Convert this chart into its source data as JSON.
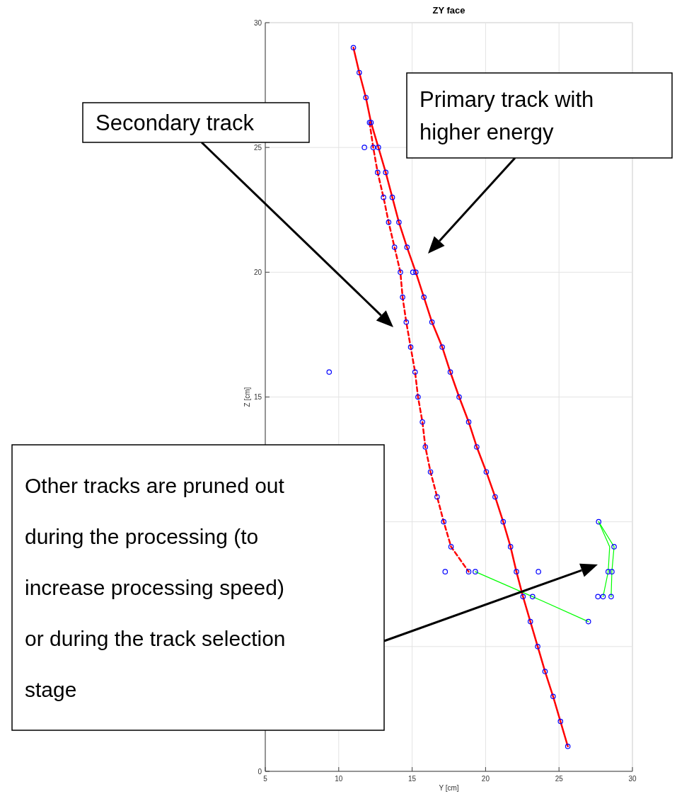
{
  "chart_data": {
    "type": "scatter",
    "title": "ZY face",
    "xlabel": "Y [cm]",
    "ylabel": "Z [cm]",
    "xlim": [
      5,
      30
    ],
    "ylim": [
      0,
      30
    ],
    "xticks": [
      5,
      10,
      15,
      20,
      25,
      30
    ],
    "yticks": [
      0,
      {
        "value": 5,
        "label": null
      },
      {
        "value": 10,
        "label": null
      },
      15,
      20,
      25,
      30
    ],
    "grid": true,
    "series": [
      {
        "type": "line",
        "color": "#ff0000",
        "line_style": "solid",
        "x": [
          11.0,
          11.4,
          11.85,
          12.2,
          12.7,
          13.2,
          13.65,
          14.1,
          14.65,
          15.25,
          15.8,
          16.35,
          17.05,
          17.6,
          18.2,
          18.85,
          19.4,
          20.05,
          20.65,
          21.2,
          21.7,
          22.1,
          22.55,
          23.05,
          23.55,
          24.05,
          24.6,
          25.1,
          25.6
        ],
        "values": [
          29,
          28,
          27,
          26,
          25,
          24,
          23,
          22,
          21,
          20,
          19,
          18,
          17,
          16,
          15,
          14,
          13,
          12,
          11,
          10,
          9,
          8,
          7,
          6,
          5,
          4,
          3,
          2,
          1
        ]
      },
      {
        "type": "line",
        "color": "#ff0000",
        "line_style": "dashed",
        "x": [
          12.1,
          12.35,
          12.65,
          13.05,
          13.4,
          13.8,
          14.2,
          14.35,
          14.6,
          14.9,
          15.2,
          15.4,
          15.7,
          15.9,
          16.25,
          16.7,
          17.15,
          17.65,
          18.85
        ],
        "values": [
          26,
          25,
          24,
          23,
          22,
          21,
          20,
          19,
          18,
          17,
          16,
          15,
          14,
          13,
          12,
          11,
          10,
          9,
          8
        ]
      },
      {
        "type": "line",
        "color": "#00ff00",
        "line_style": "solid",
        "x": [
          19.3,
          23.2,
          27.0
        ],
        "values": [
          8,
          7,
          6
        ]
      },
      {
        "type": "line",
        "color": "#00ff00",
        "line_style": "solid",
        "x": [
          27.7,
          28.75,
          28.6,
          28.55
        ],
        "values": [
          10,
          9,
          8,
          7
        ]
      },
      {
        "type": "line",
        "color": "#00ff00",
        "line_style": "solid",
        "x": [
          27.7,
          28.45,
          28.35,
          28.0
        ],
        "values": [
          10,
          9,
          8,
          7
        ]
      },
      {
        "color": "#0000ff",
        "marker": "circle",
        "x": [
          11.0,
          11.4,
          11.85,
          12.2,
          12.7,
          13.2,
          13.65,
          14.1,
          14.65,
          15.25,
          15.8,
          16.35,
          17.05,
          17.6,
          18.2,
          18.85,
          19.4,
          20.05,
          20.65,
          21.2,
          21.7,
          22.1,
          22.55,
          23.05,
          23.55,
          24.05,
          24.6,
          25.1,
          25.6,
          12.1,
          12.35,
          12.65,
          13.05,
          13.4,
          13.8,
          14.2,
          14.35,
          14.6,
          14.9,
          15.2,
          15.4,
          15.7,
          15.9,
          16.25,
          16.7,
          17.15,
          17.65,
          18.85,
          11.75,
          15.05,
          9.35,
          17.25,
          23.6,
          19.3,
          23.2,
          27.0,
          27.7,
          28.75,
          28.35,
          28.6,
          27.65,
          28.0,
          28.55
        ],
        "values": [
          29,
          28,
          27,
          26,
          25,
          24,
          23,
          22,
          21,
          20,
          19,
          18,
          17,
          16,
          15,
          14,
          13,
          12,
          11,
          10,
          9,
          8,
          7,
          6,
          5,
          4,
          3,
          2,
          1,
          26,
          25,
          24,
          23,
          22,
          21,
          20,
          19,
          18,
          17,
          16,
          15,
          14,
          13,
          12,
          11,
          10,
          9,
          8,
          25,
          20,
          16,
          8,
          8,
          8,
          7,
          6,
          10,
          9,
          8,
          8,
          7,
          7,
          7
        ]
      }
    ],
    "annotations": [
      "Secondary track",
      "Primary track with higher energy",
      "Other tracks are pruned out during the processing (to increase processing speed) or during the track selection stage"
    ]
  }
}
